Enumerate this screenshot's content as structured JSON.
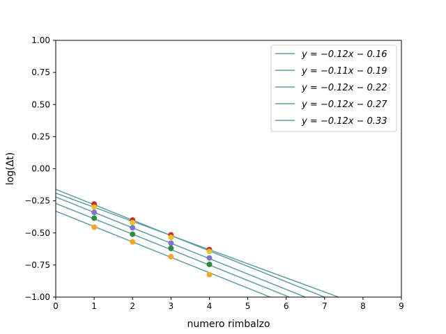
{
  "chart_data": {
    "type": "scatter",
    "title": "",
    "xlabel": "numero rimbalzo",
    "ylabel": "log(Δt)",
    "xlim": [
      0,
      9
    ],
    "ylim": [
      -1.0,
      1.0
    ],
    "x_ticks": [
      "0",
      "1",
      "2",
      "3",
      "4",
      "5",
      "6",
      "7",
      "8",
      "9"
    ],
    "y_ticks": [
      "−1.00",
      "−0.75",
      "−0.50",
      "−0.25",
      "0.00",
      "0.25",
      "0.50",
      "0.75",
      "1.00"
    ],
    "grid": false,
    "legend_position": "top-right",
    "line_color": "#5f9ea0",
    "series": [
      {
        "label": "y = −0.12x − 0.16",
        "slope": -0.12,
        "intercept": -0.16,
        "point_color": "#d62728",
        "x": [
          1,
          2,
          3,
          4
        ],
        "y": [
          -0.275,
          -0.4,
          -0.515,
          -0.63
        ]
      },
      {
        "label": "y = −0.11x − 0.19",
        "slope": -0.11,
        "intercept": -0.19,
        "point_color": "#e8c62a",
        "x": [
          1,
          2,
          3,
          4
        ],
        "y": [
          -0.3,
          -0.42,
          -0.535,
          -0.645
        ]
      },
      {
        "label": "y = −0.12x − 0.22",
        "slope": -0.12,
        "intercept": -0.22,
        "point_color": "#7b74d6",
        "x": [
          1,
          2,
          3,
          4
        ],
        "y": [
          -0.34,
          -0.46,
          -0.58,
          -0.695
        ]
      },
      {
        "label": "y = −0.12x − 0.27",
        "slope": -0.12,
        "intercept": -0.27,
        "point_color": "#2e8b3a",
        "x": [
          1,
          2,
          3,
          4
        ],
        "y": [
          -0.385,
          -0.51,
          -0.62,
          -0.745
        ]
      },
      {
        "label": "y = −0.12x − 0.33",
        "slope": -0.12,
        "intercept": -0.33,
        "point_color": "#f5a623",
        "x": [
          1,
          2,
          3,
          4
        ],
        "y": [
          -0.455,
          -0.57,
          -0.685,
          -0.825
        ]
      }
    ]
  }
}
